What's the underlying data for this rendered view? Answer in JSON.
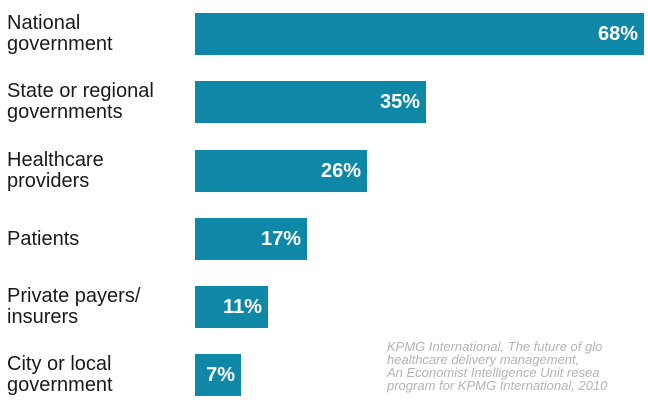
{
  "chart_data": {
    "type": "bar",
    "orientation": "horizontal",
    "categories": [
      "National\ngovernment",
      "State or regional\ngovernments",
      "Healthcare\nproviders",
      "Patients",
      "Private payers/\ninsurers",
      "City or local\ngovernment"
    ],
    "values": [
      68,
      35,
      26,
      17,
      11,
      7
    ],
    "value_labels": [
      "68%",
      "35%",
      "26%",
      "17%",
      "11%",
      "7%"
    ],
    "xlim": [
      0,
      100
    ],
    "bar_color": "#0f87a6",
    "grid": false
  },
  "source_note": {
    "lines": [
      "KPMG International, The future of glo",
      "healthcare delivery management,",
      "An Economist Intelligence Unit resea",
      "program for KPMG International, 2010"
    ]
  }
}
